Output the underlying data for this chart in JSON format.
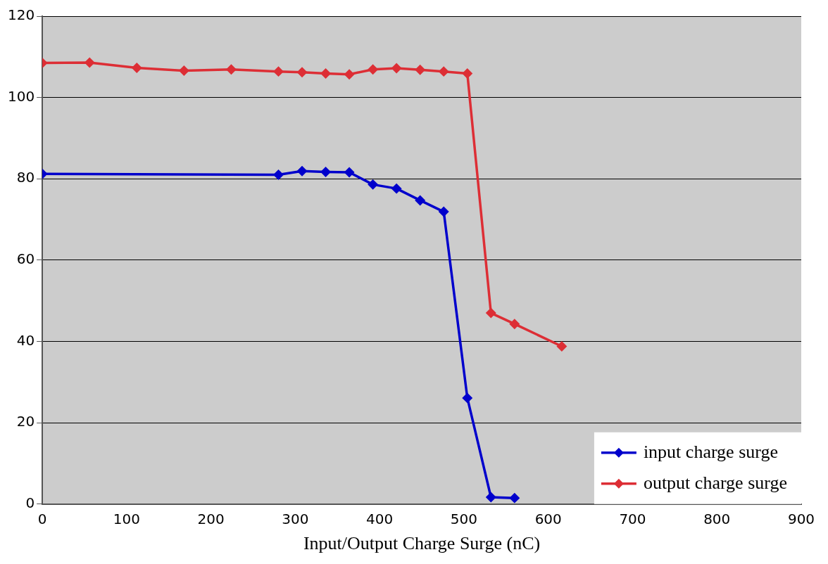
{
  "chart_data": {
    "type": "line",
    "xlabel": "Input/Output Charge Surge (nC)",
    "xlim": [
      0,
      900
    ],
    "xticks": [
      0,
      100,
      200,
      300,
      400,
      500,
      600,
      700,
      800,
      900
    ],
    "ylim": [
      0,
      120
    ],
    "yticks": [
      0,
      20,
      40,
      60,
      80,
      100,
      120
    ],
    "grid": "y",
    "legend": "bottom right",
    "marker": "diamond",
    "line_style": "solid",
    "series": [
      {
        "name": "input charge surge",
        "color": "#0000cc",
        "x": [
          0,
          280,
          308,
          336,
          364,
          392,
          420,
          448,
          476,
          504,
          532,
          560
        ],
        "values": [
          81.2,
          81.0,
          81.9,
          81.7,
          81.6,
          78.6,
          77.6,
          74.7,
          71.9,
          26.1,
          1.7,
          1.5
        ]
      },
      {
        "name": "output charge surge",
        "color": "#dd2e35",
        "x": [
          0,
          56,
          112,
          168,
          224,
          280,
          308,
          336,
          364,
          392,
          420,
          448,
          476,
          504,
          532,
          560,
          616
        ],
        "values": [
          108.5,
          108.6,
          107.3,
          106.6,
          106.9,
          106.4,
          106.2,
          105.9,
          105.7,
          106.9,
          107.2,
          106.8,
          106.4,
          105.9,
          47.0,
          44.3,
          38.8
        ]
      }
    ]
  }
}
